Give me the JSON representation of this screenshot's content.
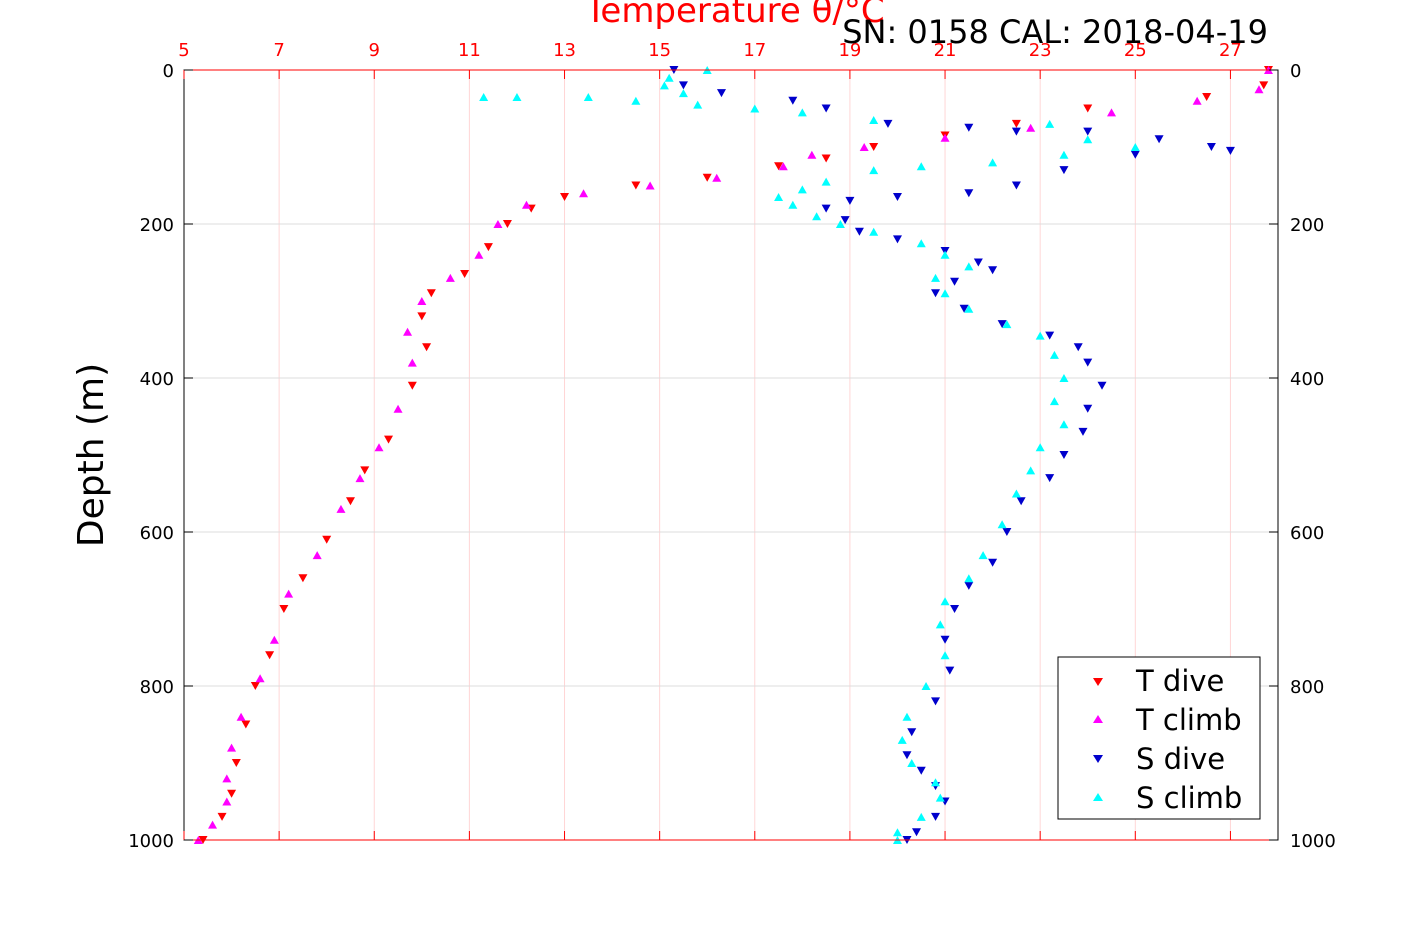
{
  "chart_data": {
    "type": "scatter",
    "title": "Temperature θ/°C",
    "subtitle": "SN: 0158  CAL: 2018-04-19",
    "xlabel": "Temperature θ/°C",
    "ylabel": "Depth (m)",
    "xlim": [
      5,
      28
    ],
    "ylim": [
      0,
      1000
    ],
    "y_inverted": true,
    "x_ticks": [
      "5",
      "7",
      "9",
      "11",
      "13",
      "15",
      "17",
      "19",
      "21",
      "23",
      "25",
      "27"
    ],
    "y_ticks": [
      "0",
      "200",
      "400",
      "600",
      "800",
      "1000"
    ],
    "grid": true,
    "legend_position": "bottom-right",
    "series": [
      {
        "name": "T dive",
        "color": "#ff0000",
        "marker": "triangle-down",
        "points": [
          [
            27.8,
            0
          ],
          [
            27.7,
            20
          ],
          [
            26.5,
            35
          ],
          [
            24.0,
            50
          ],
          [
            22.5,
            70
          ],
          [
            21.0,
            85
          ],
          [
            19.5,
            100
          ],
          [
            18.5,
            115
          ],
          [
            17.5,
            125
          ],
          [
            16.0,
            140
          ],
          [
            14.5,
            150
          ],
          [
            13.0,
            165
          ],
          [
            12.3,
            180
          ],
          [
            11.8,
            200
          ],
          [
            11.4,
            230
          ],
          [
            10.9,
            265
          ],
          [
            10.2,
            290
          ],
          [
            10.0,
            320
          ],
          [
            10.1,
            360
          ],
          [
            9.8,
            410
          ],
          [
            9.3,
            480
          ],
          [
            8.8,
            520
          ],
          [
            8.5,
            560
          ],
          [
            8.0,
            610
          ],
          [
            7.5,
            660
          ],
          [
            7.1,
            700
          ],
          [
            6.8,
            760
          ],
          [
            6.5,
            800
          ],
          [
            6.3,
            850
          ],
          [
            6.1,
            900
          ],
          [
            6.0,
            940
          ],
          [
            5.8,
            970
          ],
          [
            5.4,
            1000
          ]
        ]
      },
      {
        "name": "T climb",
        "color": "#ff00ff",
        "marker": "triangle-up",
        "points": [
          [
            27.8,
            0
          ],
          [
            27.6,
            25
          ],
          [
            26.3,
            40
          ],
          [
            24.5,
            55
          ],
          [
            22.8,
            75
          ],
          [
            21.0,
            88
          ],
          [
            19.3,
            100
          ],
          [
            18.2,
            110
          ],
          [
            17.6,
            125
          ],
          [
            16.2,
            140
          ],
          [
            14.8,
            150
          ],
          [
            13.4,
            160
          ],
          [
            12.2,
            175
          ],
          [
            11.6,
            200
          ],
          [
            11.2,
            240
          ],
          [
            10.6,
            270
          ],
          [
            10.0,
            300
          ],
          [
            9.7,
            340
          ],
          [
            9.8,
            380
          ],
          [
            9.5,
            440
          ],
          [
            9.1,
            490
          ],
          [
            8.7,
            530
          ],
          [
            8.3,
            570
          ],
          [
            7.8,
            630
          ],
          [
            7.2,
            680
          ],
          [
            6.9,
            740
          ],
          [
            6.6,
            790
          ],
          [
            6.2,
            840
          ],
          [
            6.0,
            880
          ],
          [
            5.9,
            920
          ],
          [
            5.9,
            950
          ],
          [
            5.6,
            980
          ],
          [
            5.3,
            1000
          ]
        ]
      },
      {
        "name": "S dive",
        "color": "#0000cc",
        "marker": "triangle-down",
        "points": [
          [
            15.3,
            0
          ],
          [
            15.5,
            20
          ],
          [
            16.3,
            30
          ],
          [
            17.8,
            40
          ],
          [
            18.5,
            50
          ],
          [
            19.8,
            70
          ],
          [
            21.5,
            75
          ],
          [
            22.5,
            80
          ],
          [
            24.0,
            80
          ],
          [
            25.5,
            90
          ],
          [
            26.6,
            100
          ],
          [
            27.0,
            105
          ],
          [
            25.0,
            110
          ],
          [
            23.5,
            130
          ],
          [
            22.5,
            150
          ],
          [
            21.5,
            160
          ],
          [
            20.0,
            165
          ],
          [
            19.0,
            170
          ],
          [
            18.5,
            180
          ],
          [
            18.9,
            195
          ],
          [
            19.2,
            210
          ],
          [
            20.0,
            220
          ],
          [
            21.0,
            235
          ],
          [
            21.7,
            250
          ],
          [
            22.0,
            260
          ],
          [
            21.2,
            275
          ],
          [
            20.8,
            290
          ],
          [
            21.4,
            310
          ],
          [
            22.2,
            330
          ],
          [
            23.2,
            345
          ],
          [
            23.8,
            360
          ],
          [
            24.0,
            380
          ],
          [
            24.3,
            410
          ],
          [
            24.0,
            440
          ],
          [
            23.9,
            470
          ],
          [
            23.5,
            500
          ],
          [
            23.2,
            530
          ],
          [
            22.6,
            560
          ],
          [
            22.3,
            600
          ],
          [
            22.0,
            640
          ],
          [
            21.5,
            670
          ],
          [
            21.2,
            700
          ],
          [
            21.0,
            740
          ],
          [
            21.1,
            780
          ],
          [
            20.8,
            820
          ],
          [
            20.3,
            860
          ],
          [
            20.2,
            890
          ],
          [
            20.5,
            910
          ],
          [
            20.8,
            930
          ],
          [
            21.0,
            950
          ],
          [
            20.8,
            970
          ],
          [
            20.4,
            990
          ],
          [
            20.2,
            1000
          ]
        ]
      },
      {
        "name": "S climb",
        "color": "#00ffff",
        "marker": "triangle-up",
        "points": [
          [
            16.0,
            0
          ],
          [
            15.2,
            10
          ],
          [
            15.1,
            20
          ],
          [
            15.5,
            30
          ],
          [
            11.3,
            35
          ],
          [
            12.0,
            35
          ],
          [
            13.5,
            35
          ],
          [
            14.5,
            40
          ],
          [
            15.8,
            45
          ],
          [
            17.0,
            50
          ],
          [
            18.0,
            55
          ],
          [
            19.5,
            65
          ],
          [
            23.2,
            70
          ],
          [
            24.0,
            90
          ],
          [
            25.0,
            100
          ],
          [
            23.5,
            110
          ],
          [
            22.0,
            120
          ],
          [
            20.5,
            125
          ],
          [
            19.5,
            130
          ],
          [
            18.5,
            145
          ],
          [
            18.0,
            155
          ],
          [
            17.5,
            165
          ],
          [
            17.8,
            175
          ],
          [
            18.3,
            190
          ],
          [
            18.8,
            200
          ],
          [
            19.5,
            210
          ],
          [
            20.5,
            225
          ],
          [
            21.0,
            240
          ],
          [
            21.5,
            255
          ],
          [
            20.8,
            270
          ],
          [
            21.0,
            290
          ],
          [
            21.5,
            310
          ],
          [
            22.3,
            330
          ],
          [
            23.0,
            345
          ],
          [
            23.3,
            370
          ],
          [
            23.5,
            400
          ],
          [
            23.3,
            430
          ],
          [
            23.5,
            460
          ],
          [
            23.0,
            490
          ],
          [
            22.8,
            520
          ],
          [
            22.5,
            550
          ],
          [
            22.2,
            590
          ],
          [
            21.8,
            630
          ],
          [
            21.5,
            660
          ],
          [
            21.0,
            690
          ],
          [
            20.9,
            720
          ],
          [
            21.0,
            760
          ],
          [
            20.6,
            800
          ],
          [
            20.2,
            840
          ],
          [
            20.1,
            870
          ],
          [
            20.3,
            900
          ],
          [
            20.8,
            925
          ],
          [
            20.9,
            945
          ],
          [
            20.5,
            970
          ],
          [
            20.0,
            990
          ],
          [
            20.0,
            1000
          ]
        ]
      }
    ]
  }
}
